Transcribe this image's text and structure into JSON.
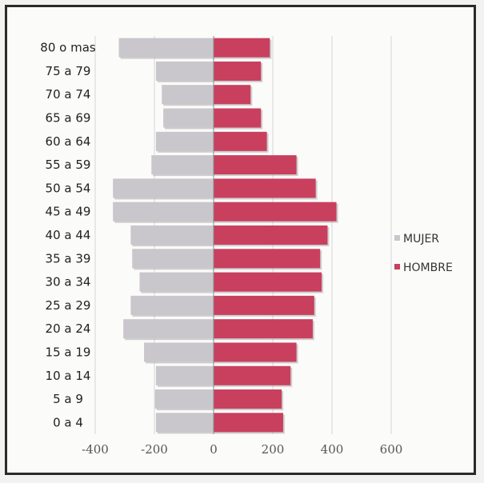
{
  "chart_data": {
    "type": "bar",
    "orientation": "horizontal",
    "categories": [
      "0 a 4",
      "5 a 9",
      "10 a 14",
      "15 a 19",
      "20 a 24",
      "25 a 29",
      "30 a 34",
      "35 a 39",
      "40 a 44",
      "45 a 49",
      "50 a 54",
      "55 a 59",
      "60 a 64",
      "65 a 69",
      "70 a 74",
      "75 a 79",
      "80 o mas"
    ],
    "series": [
      {
        "name": "MUJER",
        "color": "#c9c6cc",
        "values": [
          -195,
          -198,
          -195,
          -235,
          -305,
          -280,
          -250,
          -275,
          -280,
          -340,
          -340,
          -210,
          -195,
          -170,
          -175,
          -195,
          -320
        ]
      },
      {
        "name": "HOMBRE",
        "color": "#c8405e",
        "values": [
          235,
          230,
          260,
          280,
          335,
          340,
          365,
          360,
          385,
          415,
          345,
          280,
          180,
          160,
          125,
          160,
          190
        ]
      }
    ],
    "xlim": [
      -400,
      600
    ],
    "xticks": [
      "-400",
      "-200",
      "0",
      "200",
      "400",
      "600"
    ],
    "grid": true,
    "legend": "right",
    "title": "",
    "xlabel": "",
    "ylabel": ""
  }
}
